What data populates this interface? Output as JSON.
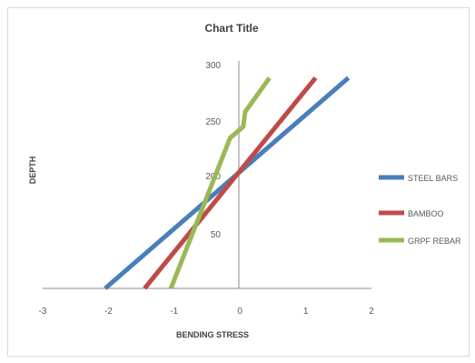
{
  "chart_data": {
    "type": "line",
    "title": "Chart Title",
    "xlabel": "BENDING STRESS",
    "ylabel": "DEPTH",
    "xlim": [
      -3,
      2
    ],
    "x_ticks": [
      "-3",
      "-2",
      "-1",
      "0",
      "1",
      "2"
    ],
    "y_tick_labels": [
      "50",
      "200",
      "250",
      "300"
    ],
    "grid": false,
    "legend_position": "right",
    "series": [
      {
        "name": "STEEL BARS",
        "color": "#4a7ebb",
        "points": [
          [
            -2.05,
            0
          ],
          [
            1.65,
            280
          ]
        ]
      },
      {
        "name": "BAMBOO",
        "color": "#be4b48",
        "points": [
          [
            -1.45,
            0
          ],
          [
            1.15,
            280
          ]
        ]
      },
      {
        "name": "GRPF REBAR",
        "color": "#98b954",
        "points": [
          [
            -1.05,
            0
          ],
          [
            -0.15,
            200
          ],
          [
            0.05,
            215
          ],
          [
            0.08,
            235
          ],
          [
            0.45,
            280
          ]
        ]
      }
    ]
  }
}
